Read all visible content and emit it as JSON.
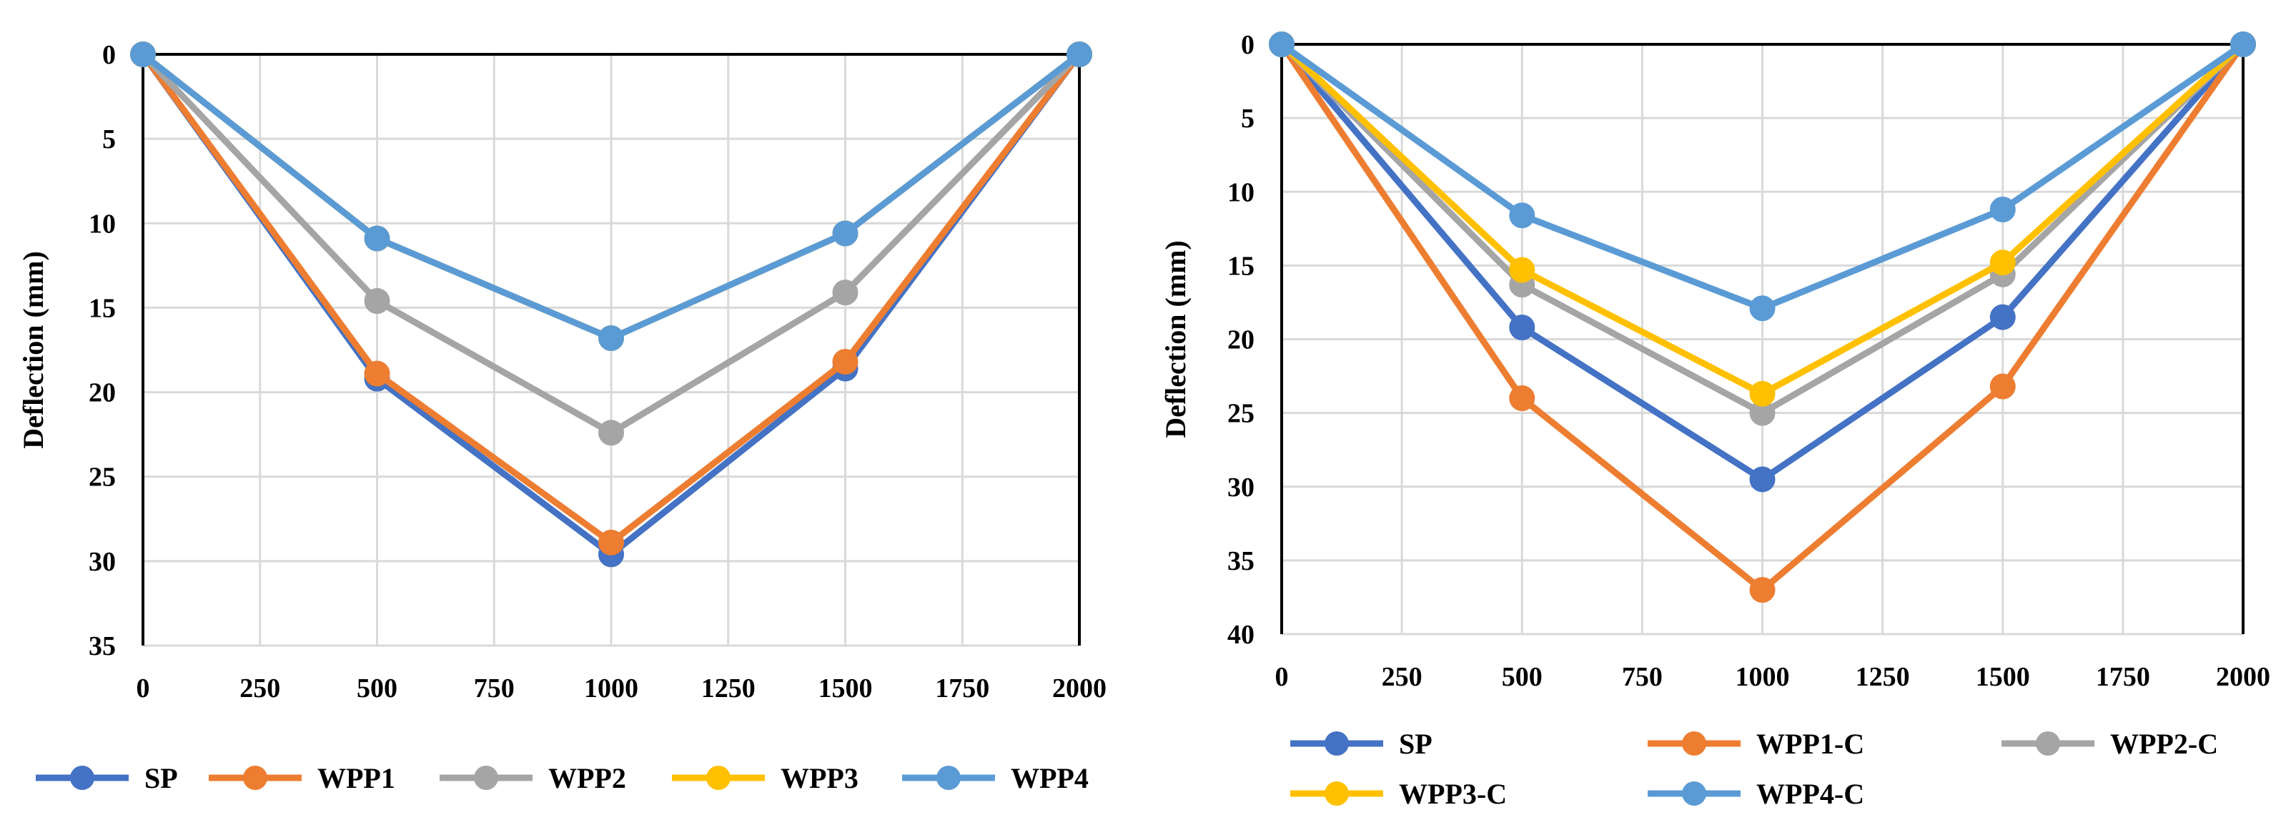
{
  "chart_data": [
    {
      "type": "line",
      "title": "",
      "xlabel": "",
      "ylabel": "Deflection (mm)",
      "y_inverted": true,
      "xlim": [
        0,
        2000
      ],
      "ylim": [
        0,
        35
      ],
      "xticks": [
        "0",
        "250",
        "500",
        "750",
        "1000",
        "1250",
        "1500",
        "1750",
        "2000"
      ],
      "yticks": [
        "0",
        "5",
        "10",
        "15",
        "20",
        "25",
        "30",
        "35"
      ],
      "grid": true,
      "legend_position": "bottom",
      "x": [
        0,
        500,
        1000,
        1500,
        2000
      ],
      "series": [
        {
          "name": "SP",
          "color": "#4472C4",
          "values": [
            0,
            19.2,
            29.6,
            18.6,
            0
          ]
        },
        {
          "name": "WPP1",
          "color": "#ED7D31",
          "values": [
            0,
            18.9,
            28.9,
            18.2,
            0
          ]
        },
        {
          "name": "WPP2",
          "color": "#A5A5A5",
          "values": [
            0,
            14.6,
            22.4,
            14.1,
            0
          ]
        },
        {
          "name": "WPP3",
          "color": "#FFC000",
          "values": [
            0,
            10.9,
            16.8,
            10.6,
            0
          ]
        },
        {
          "name": "WPP4",
          "color": "#5B9BD5",
          "values": [
            0,
            10.9,
            16.8,
            10.6,
            0
          ]
        }
      ]
    },
    {
      "type": "line",
      "title": "",
      "xlabel": "",
      "ylabel": "Deflection (mm)",
      "y_inverted": true,
      "xlim": [
        0,
        2000
      ],
      "ylim": [
        0,
        40
      ],
      "xticks": [
        "0",
        "250",
        "500",
        "750",
        "1000",
        "1250",
        "1500",
        "1750",
        "2000"
      ],
      "yticks": [
        "0",
        "5",
        "10",
        "15",
        "20",
        "25",
        "30",
        "35",
        "40"
      ],
      "grid": true,
      "legend_position": "bottom",
      "x": [
        0,
        500,
        1000,
        1500,
        2000
      ],
      "series": [
        {
          "name": "SP",
          "color": "#4472C4",
          "values": [
            0,
            19.2,
            29.5,
            18.5,
            0
          ]
        },
        {
          "name": "WPP1-C",
          "color": "#ED7D31",
          "values": [
            0,
            24.0,
            37.0,
            23.2,
            0
          ]
        },
        {
          "name": "WPP2-C",
          "color": "#A5A5A5",
          "values": [
            0,
            16.3,
            25.0,
            15.6,
            0
          ]
        },
        {
          "name": "WPP3-C",
          "color": "#FFC000",
          "values": [
            0,
            15.3,
            23.7,
            14.8,
            0
          ]
        },
        {
          "name": "WPP4-C",
          "color": "#5B9BD5",
          "values": [
            0,
            11.6,
            17.9,
            11.2,
            0
          ]
        }
      ]
    }
  ]
}
